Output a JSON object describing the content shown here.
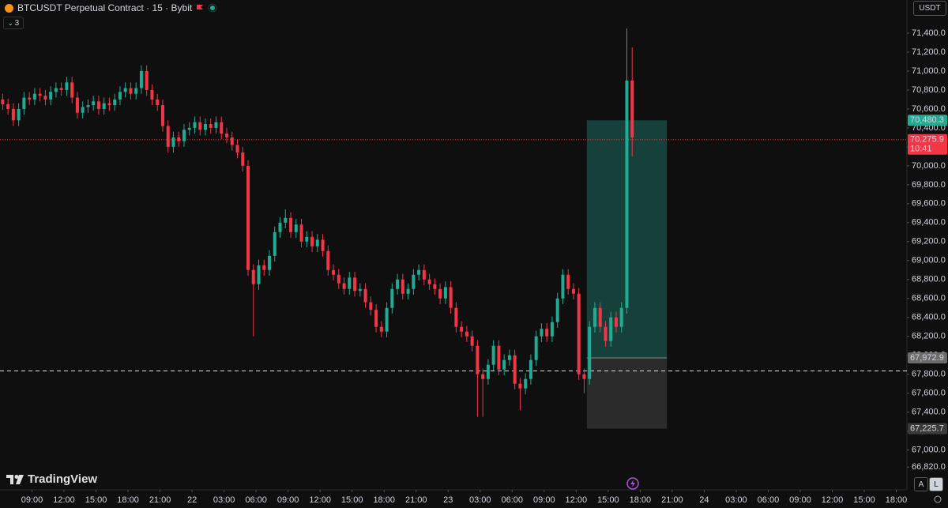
{
  "header": {
    "title": "BTCUSDT Perpetual Contract · 15 · Bybit",
    "indicator_count": "3",
    "currency": "USDT",
    "brand": "TradingView",
    "scale_buttons": [
      "A",
      "L"
    ]
  },
  "chart_data": {
    "type": "candlestick",
    "up_color": "#22ab94",
    "down_color": "#f23645",
    "x": [
      6.25,
      6.75,
      7.25,
      7.75,
      8.25,
      8.75,
      9.25,
      9.75,
      10.25,
      10.75,
      11.25,
      11.75,
      12.25,
      12.75,
      13.25,
      13.75,
      14.25,
      14.75,
      15.25,
      15.75,
      16.25,
      16.75,
      17.25,
      17.75,
      18.25,
      18.75,
      19.25,
      19.75,
      20.25,
      20.75,
      21.25,
      21.75,
      22.25,
      22.75,
      23.25,
      23.75,
      24.25,
      24.75,
      25.25,
      25.75,
      26.25,
      26.75,
      27.25,
      27.75,
      28.25,
      28.75,
      29.25,
      29.75,
      30.25,
      30.75,
      31.25,
      31.75,
      32.25,
      32.75,
      33.25,
      33.75,
      34.25,
      34.75,
      35.25,
      35.75,
      36.25,
      36.75,
      37.25,
      37.75,
      38.25,
      38.75,
      39.25,
      39.75,
      40.25,
      40.75,
      41.25,
      41.75,
      42.25,
      42.75,
      43.25,
      43.75,
      44.25,
      44.75,
      45.25,
      45.75,
      46.25,
      46.75,
      47.25,
      47.75,
      48.25,
      48.75,
      49.25,
      49.75,
      50.25,
      50.75,
      51.25,
      51.75,
      52.25,
      52.75,
      53.25,
      53.75,
      54.25,
      54.75,
      55.25,
      55.75,
      56.25,
      56.75,
      57.25,
      57.75,
      58.25,
      58.75,
      59.25,
      59.75,
      60.25,
      60.75,
      61.25,
      61.75,
      62.25,
      62.75,
      63.25,
      63.75,
      64.25,
      64.75,
      65.25
    ],
    "open": [
      70700,
      70650,
      70600,
      70480,
      70600,
      70720,
      70700,
      70760,
      70740,
      70700,
      70780,
      70820,
      70800,
      70880,
      70720,
      70560,
      70620,
      70640,
      70680,
      70600,
      70660,
      70640,
      70700,
      70780,
      70820,
      70760,
      70820,
      71000,
      70800,
      70700,
      70640,
      70420,
      70200,
      70300,
      70260,
      70380,
      70400,
      70460,
      70380,
      70440,
      70400,
      70460,
      70340,
      70300,
      70220,
      70140,
      70000,
      68900,
      68750,
      68950,
      68900,
      69050,
      69300,
      69400,
      69450,
      69300,
      69380,
      69200,
      69250,
      69150,
      69220,
      69100,
      68900,
      68850,
      68760,
      68700,
      68820,
      68680,
      68700,
      68560,
      68480,
      68300,
      68250,
      68500,
      68700,
      68800,
      68650,
      68700,
      68850,
      68900,
      68800,
      68750,
      68700,
      68600,
      68720,
      68500,
      68300,
      68250,
      68200,
      68100,
      67800,
      67750,
      67900,
      68100,
      67850,
      67950,
      68000,
      67700,
      67650,
      67750,
      67950,
      68200,
      68280,
      68200,
      68350,
      68600,
      68850,
      68700,
      68650,
      67800,
      67750,
      68300,
      68500,
      68300,
      68150,
      68400,
      68300,
      68500,
      70900
    ],
    "high": [
      70760,
      70710,
      70660,
      70660,
      70780,
      70780,
      70820,
      70820,
      70800,
      70840,
      70880,
      70880,
      70940,
      70940,
      70780,
      70680,
      70700,
      70740,
      70740,
      70720,
      70720,
      70760,
      70840,
      70880,
      70880,
      70880,
      71060,
      71060,
      70860,
      70760,
      70700,
      70480,
      70360,
      70360,
      70440,
      70460,
      70520,
      70520,
      70500,
      70500,
      70520,
      70520,
      70400,
      70360,
      70280,
      70200,
      70060,
      68960,
      69010,
      69010,
      69110,
      69360,
      69460,
      69540,
      69510,
      69440,
      69440,
      69310,
      69310,
      69280,
      69280,
      69160,
      68960,
      68910,
      68820,
      68880,
      68880,
      68760,
      68760,
      68620,
      68540,
      68360,
      68560,
      68760,
      68860,
      68860,
      68760,
      68910,
      68960,
      68960,
      68860,
      68810,
      68760,
      68780,
      68780,
      68560,
      68360,
      68310,
      68260,
      68160,
      67860,
      67960,
      68160,
      68160,
      68010,
      68060,
      68060,
      67760,
      67810,
      68010,
      68260,
      68340,
      68340,
      68410,
      68660,
      68910,
      68910,
      68760,
      68710,
      67860,
      68360,
      68560,
      68560,
      68360,
      68460,
      68460,
      68560,
      71450,
      71250
    ],
    "low": [
      70590,
      70540,
      70420,
      70420,
      70540,
      70640,
      70640,
      70680,
      70640,
      70640,
      70720,
      70740,
      70740,
      70660,
      70500,
      70500,
      70560,
      70580,
      70540,
      70540,
      70580,
      70580,
      70640,
      70720,
      70700,
      70700,
      70760,
      70740,
      70640,
      70580,
      70360,
      70140,
      70140,
      70200,
      70200,
      70320,
      70340,
      70320,
      70320,
      70340,
      70340,
      70280,
      70240,
      70160,
      70080,
      69940,
      68840,
      68200,
      68690,
      68840,
      68840,
      68990,
      69240,
      69340,
      69240,
      69240,
      69140,
      69140,
      69090,
      69090,
      69040,
      68840,
      68790,
      68700,
      68640,
      68640,
      68620,
      68620,
      68500,
      68420,
      68240,
      68190,
      68190,
      68440,
      68640,
      68590,
      68590,
      68640,
      68790,
      68740,
      68690,
      68640,
      68540,
      68540,
      68440,
      68240,
      68190,
      68140,
      68040,
      67350,
      67350,
      67690,
      67840,
      67790,
      67790,
      67890,
      67640,
      67420,
      67590,
      67690,
      67890,
      68140,
      68140,
      68140,
      68290,
      68540,
      68640,
      68590,
      67740,
      67600,
      67690,
      68240,
      68240,
      68090,
      68090,
      68240,
      68240,
      68440,
      70100
    ],
    "close": [
      70650,
      70600,
      70480,
      70600,
      70720,
      70700,
      70760,
      70740,
      70700,
      70780,
      70820,
      70800,
      70880,
      70720,
      70560,
      70620,
      70640,
      70680,
      70600,
      70660,
      70640,
      70700,
      70780,
      70820,
      70760,
      70820,
      71000,
      70800,
      70700,
      70640,
      70420,
      70200,
      70300,
      70260,
      70380,
      70400,
      70460,
      70380,
      70440,
      70400,
      70460,
      70340,
      70300,
      70220,
      70140,
      70000,
      68900,
      68750,
      68950,
      68900,
      69050,
      69300,
      69400,
      69450,
      69300,
      69380,
      69200,
      69250,
      69150,
      69220,
      69100,
      68900,
      68850,
      68760,
      68700,
      68820,
      68680,
      68700,
      68560,
      68480,
      68300,
      68250,
      68500,
      68700,
      68800,
      68650,
      68700,
      68850,
      68900,
      68800,
      68750,
      68700,
      68600,
      68720,
      68500,
      68300,
      68250,
      68200,
      68100,
      67800,
      67750,
      67900,
      68100,
      67850,
      67950,
      68000,
      67700,
      67650,
      67750,
      67950,
      68200,
      68280,
      68200,
      68350,
      68600,
      68850,
      68700,
      68650,
      67800,
      67750,
      68300,
      68500,
      68300,
      68150,
      68400,
      68300,
      68500,
      70900,
      70300
    ],
    "xlim": [
      6,
      91
    ],
    "xticks": [
      {
        "value": 9,
        "label": "09:00"
      },
      {
        "value": 12,
        "label": "12:00"
      },
      {
        "value": 15,
        "label": "15:00"
      },
      {
        "value": 18,
        "label": "18:00"
      },
      {
        "value": 21,
        "label": "21:00"
      },
      {
        "value": 24,
        "label": "22"
      },
      {
        "value": 27,
        "label": "03:00"
      },
      {
        "value": 30,
        "label": "06:00"
      },
      {
        "value": 33,
        "label": "09:00"
      },
      {
        "value": 36,
        "label": "12:00"
      },
      {
        "value": 39,
        "label": "15:00"
      },
      {
        "value": 42,
        "label": "18:00"
      },
      {
        "value": 45,
        "label": "21:00"
      },
      {
        "value": 48,
        "label": "23"
      },
      {
        "value": 51,
        "label": "03:00"
      },
      {
        "value": 54,
        "label": "06:00"
      },
      {
        "value": 57,
        "label": "09:00"
      },
      {
        "value": 60,
        "label": "12:00"
      },
      {
        "value": 63,
        "label": "15:00"
      },
      {
        "value": 66,
        "label": "18:00"
      },
      {
        "value": 69,
        "label": "21:00"
      },
      {
        "value": 72,
        "label": "24"
      },
      {
        "value": 75,
        "label": "03:00"
      },
      {
        "value": 78,
        "label": "06:00"
      },
      {
        "value": 81,
        "label": "09:00"
      },
      {
        "value": 84,
        "label": "12:00"
      },
      {
        "value": 87,
        "label": "15:00"
      },
      {
        "value": 90,
        "label": "18:00"
      }
    ],
    "ylim": [
      66580,
      71750
    ],
    "yticks": [
      {
        "value": 66820,
        "label": "66,820.0"
      },
      {
        "value": 67000,
        "label": "67,000.0"
      },
      {
        "value": 67200,
        "label": "67,200.0"
      },
      {
        "value": 67400,
        "label": "67,400.0"
      },
      {
        "value": 67600,
        "label": "67,600.0"
      },
      {
        "value": 67800,
        "label": "67,800.0"
      },
      {
        "value": 68000,
        "label": "68,000.0"
      },
      {
        "value": 68200,
        "label": "68,200.0"
      },
      {
        "value": 68400,
        "label": "68,400.0"
      },
      {
        "value": 68600,
        "label": "68,600.0"
      },
      {
        "value": 68800,
        "label": "68,800.0"
      },
      {
        "value": 69000,
        "label": "69,000.0"
      },
      {
        "value": 69200,
        "label": "69,200.0"
      },
      {
        "value": 69400,
        "label": "69,400.0"
      },
      {
        "value": 69600,
        "label": "69,600.0"
      },
      {
        "value": 69800,
        "label": "69,800.0"
      },
      {
        "value": 70000,
        "label": "70,000.0"
      },
      {
        "value": 70200,
        "label": "70,200.0"
      },
      {
        "value": 70400,
        "label": "70,400.0"
      },
      {
        "value": 70600,
        "label": "70,600.0"
      },
      {
        "value": 70800,
        "label": "70,800.0"
      },
      {
        "value": 71000,
        "label": "71,000.0"
      },
      {
        "value": 71200,
        "label": "71,200.0"
      },
      {
        "value": 71400,
        "label": "71,400.0"
      }
    ],
    "position": {
      "x_start": 61,
      "x_end": 68.5,
      "target": {
        "value": 70480.3,
        "label": "70,480.3"
      },
      "entry": {
        "value": 67972.9,
        "label": "67,972.9"
      },
      "stop": {
        "value": 67225.7,
        "label": "67,225.7"
      }
    },
    "horizontal_line": 67835,
    "last_price": {
      "value": 70275.9,
      "label": "70,275.9",
      "countdown": "10:41"
    }
  }
}
